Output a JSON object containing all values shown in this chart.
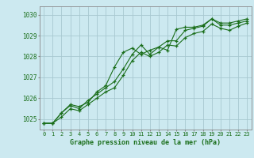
{
  "x": [
    0,
    1,
    2,
    3,
    4,
    5,
    6,
    7,
    8,
    9,
    10,
    11,
    12,
    13,
    14,
    15,
    16,
    17,
    18,
    19,
    20,
    21,
    22,
    23
  ],
  "line1": [
    1024.8,
    1024.8,
    1025.3,
    1025.7,
    1025.6,
    1025.8,
    1026.3,
    1026.6,
    1027.5,
    1028.2,
    1028.4,
    1028.1,
    1028.3,
    1028.45,
    1028.3,
    1029.3,
    1029.4,
    1029.4,
    1029.5,
    1029.8,
    1029.6,
    1029.6,
    1029.7,
    1029.8
  ],
  "line2": [
    1024.8,
    1024.8,
    1025.3,
    1025.65,
    1025.5,
    1025.9,
    1026.2,
    1026.5,
    1026.8,
    1027.4,
    1028.1,
    1028.55,
    1028.1,
    1028.45,
    1028.75,
    1028.75,
    1029.25,
    1029.35,
    1029.45,
    1029.8,
    1029.5,
    1029.5,
    1029.6,
    1029.7
  ],
  "line3": [
    1024.8,
    1024.8,
    1025.1,
    1025.5,
    1025.4,
    1025.7,
    1026.0,
    1026.3,
    1026.5,
    1027.1,
    1027.8,
    1028.2,
    1028.0,
    1028.2,
    1028.55,
    1028.5,
    1028.9,
    1029.1,
    1029.2,
    1029.55,
    1029.35,
    1029.25,
    1029.45,
    1029.6
  ],
  "bg_color": "#cce9f0",
  "grid_color": "#a8c8d0",
  "line_color": "#1a6e1a",
  "xlabel": "Graphe pression niveau de la mer (hPa)",
  "ylim": [
    1024.5,
    1030.4
  ],
  "yticks": [
    1025,
    1026,
    1027,
    1028,
    1029,
    1030
  ],
  "xticks": [
    0,
    1,
    2,
    3,
    4,
    5,
    6,
    7,
    8,
    9,
    10,
    11,
    12,
    13,
    14,
    15,
    16,
    17,
    18,
    19,
    20,
    21,
    22,
    23
  ]
}
